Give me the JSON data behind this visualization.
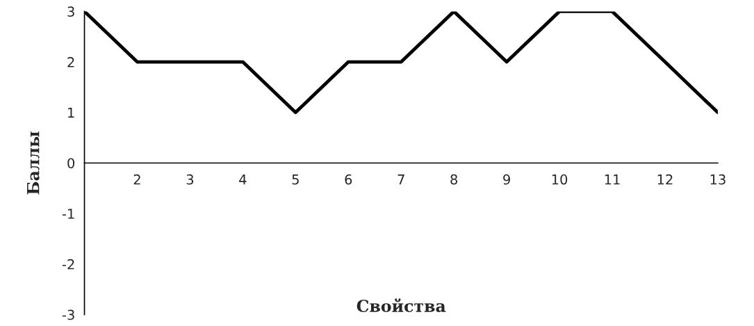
{
  "chart_data": {
    "type": "line",
    "xlabel": "Свойства",
    "ylabel": "Баллы",
    "x": [
      1,
      2,
      3,
      4,
      5,
      6,
      7,
      8,
      9,
      10,
      11,
      12,
      13
    ],
    "series": [
      {
        "color": "#000000",
        "values": [
          3,
          2,
          2,
          2,
          1,
          2,
          2,
          3,
          2,
          3,
          3,
          2,
          1
        ]
      }
    ],
    "xlim": [
      1,
      13
    ],
    "xticks": [
      2,
      3,
      4,
      5,
      6,
      7,
      8,
      9,
      10,
      11,
      12,
      13
    ],
    "ylim": [
      -3,
      3
    ],
    "yticks": [
      -3,
      -2,
      -1,
      0,
      1,
      2,
      3
    ],
    "grid": false,
    "legend": false,
    "marker": "none",
    "line_style": "solid"
  }
}
